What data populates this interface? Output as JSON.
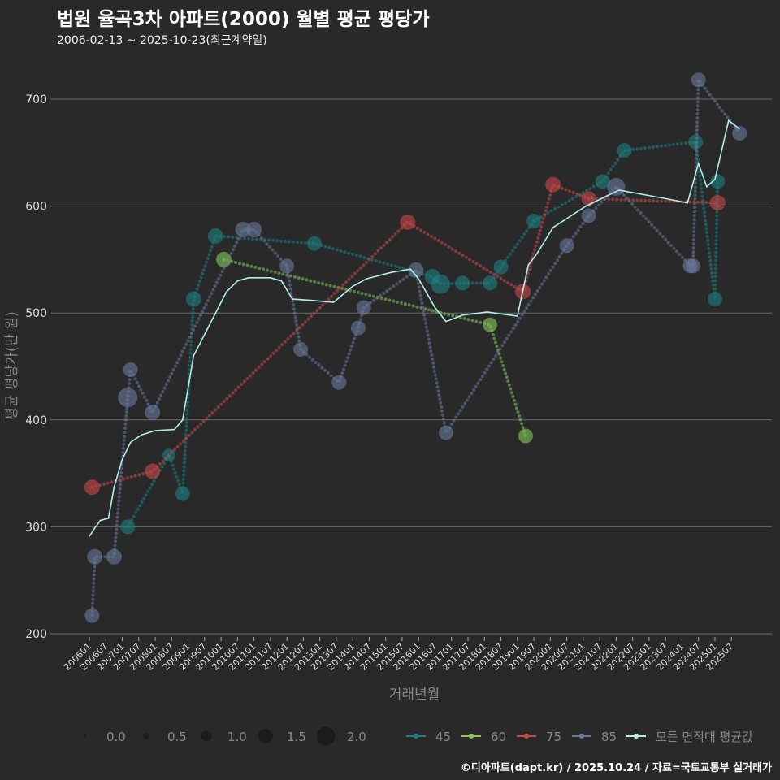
{
  "header": {
    "title": "법원 율곡3차 아파트(2000) 월별 평균 평당가",
    "subtitle": "2006-02-13 ~ 2025-10-23(최근계약일)"
  },
  "credit": "©디아파트(dapt.kr) / 2025.10.24 / 자료=국토교통부 실거래가",
  "chart_data": {
    "type": "line",
    "title": "법원 율곡3차 아파트(2000) 월별 평균 평당가",
    "xlabel": "거래년월",
    "ylabel": "평균 평당가(만 원)",
    "ylim": [
      200,
      730
    ],
    "yticks": [
      200,
      300,
      400,
      500,
      600,
      700
    ],
    "x_unit": "months since 2006-01",
    "xticks": [
      "200601",
      "200607",
      "200701",
      "200707",
      "200801",
      "200807",
      "200901",
      "200907",
      "201001",
      "201007",
      "201101",
      "201107",
      "201201",
      "201207",
      "201301",
      "201307",
      "201401",
      "201407",
      "201501",
      "201507",
      "201601",
      "201607",
      "201701",
      "201707",
      "201801",
      "201807",
      "201901",
      "201907",
      "202001",
      "202007",
      "202101",
      "202107",
      "202201",
      "202207",
      "202301",
      "202307",
      "202401",
      "202407",
      "202501",
      "202507"
    ],
    "grid": true,
    "size_legend": {
      "title": "",
      "values": [
        "0.0",
        "0.5",
        "1.0",
        "1.5",
        "2.0"
      ]
    },
    "legend_position": "bottom",
    "series": [
      {
        "name": "45",
        "color": "#1c8080",
        "points": [
          [
            14,
            300,
            0.8
          ],
          [
            29,
            367,
            0.6
          ],
          [
            34,
            331,
            0.8
          ],
          [
            38,
            513,
            0.9
          ],
          [
            46,
            572,
            0.9
          ],
          [
            82,
            565,
            0.8
          ],
          [
            125,
            534,
            0.9
          ],
          [
            128,
            527,
            1.4
          ],
          [
            136,
            528,
            0.8
          ],
          [
            146,
            528,
            0.8
          ],
          [
            150,
            543,
            0.8
          ],
          [
            162,
            586,
            0.8
          ],
          [
            187,
            623,
            0.8
          ],
          [
            195,
            652,
            0.8
          ],
          [
            221,
            660,
            0.8
          ],
          [
            229,
            623,
            0.8
          ],
          [
            228,
            513,
            0.8
          ]
        ]
      },
      {
        "name": "60",
        "color": "#86c85a",
        "points": [
          [
            49,
            550,
            0.9
          ],
          [
            146,
            489,
            0.8
          ],
          [
            159,
            385,
            0.8
          ]
        ]
      },
      {
        "name": "75",
        "color": "#cc4848",
        "points": [
          [
            1,
            337,
            0.9
          ],
          [
            23,
            352,
            0.9
          ],
          [
            116,
            585,
            0.9
          ],
          [
            158,
            520,
            0.9
          ],
          [
            169,
            620,
            0.9
          ],
          [
            182,
            607,
            0.8
          ],
          [
            229,
            603,
            0.9
          ]
        ]
      },
      {
        "name": "85",
        "color": "#6a7a9c",
        "points": [
          [
            1,
            217,
            0.8
          ],
          [
            2,
            272,
            0.9
          ],
          [
            9,
            272,
            0.9
          ],
          [
            15,
            447,
            0.8
          ],
          [
            14,
            421,
            1.4
          ],
          [
            23,
            407,
            0.9
          ],
          [
            56,
            578,
            0.9
          ],
          [
            60,
            578,
            0.9
          ],
          [
            72,
            544,
            0.8
          ],
          [
            77,
            466,
            0.8
          ],
          [
            91,
            435,
            0.8
          ],
          [
            98,
            486,
            0.8
          ],
          [
            100,
            505,
            0.8
          ],
          [
            119,
            540,
            0.9
          ],
          [
            130,
            388,
            0.8
          ],
          [
            174,
            563,
            0.8
          ],
          [
            182,
            591,
            0.8
          ],
          [
            192,
            618,
            1.2
          ],
          [
            219,
            544,
            0.8
          ],
          [
            220,
            544,
            0.8
          ],
          [
            222,
            718,
            0.8
          ],
          [
            237,
            668,
            0.8
          ]
        ]
      },
      {
        "name": "모든 면적대 평균값",
        "color": "#b2f0ea",
        "points": [
          [
            0,
            291
          ],
          [
            2,
            299
          ],
          [
            4,
            306
          ],
          [
            7,
            308
          ],
          [
            9,
            337
          ],
          [
            12,
            363
          ],
          [
            15,
            379
          ],
          [
            19,
            386
          ],
          [
            24,
            390
          ],
          [
            31,
            391
          ],
          [
            34,
            400
          ],
          [
            36,
            430
          ],
          [
            38,
            460
          ],
          [
            41,
            475
          ],
          [
            44,
            490
          ],
          [
            50,
            520
          ],
          [
            54,
            530
          ],
          [
            58,
            533
          ],
          [
            66,
            533
          ],
          [
            70,
            530
          ],
          [
            74,
            513
          ],
          [
            80,
            512
          ],
          [
            89,
            510
          ],
          [
            96,
            525
          ],
          [
            101,
            532
          ],
          [
            110,
            538
          ],
          [
            117,
            541
          ],
          [
            120,
            532
          ],
          [
            126,
            505
          ],
          [
            130,
            492
          ],
          [
            136,
            498
          ],
          [
            145,
            501
          ],
          [
            156,
            497
          ],
          [
            160,
            545
          ],
          [
            163,
            555
          ],
          [
            169,
            580
          ],
          [
            181,
            600
          ],
          [
            193,
            615
          ],
          [
            210,
            607
          ],
          [
            218,
            603
          ],
          [
            222,
            640
          ],
          [
            225,
            618
          ],
          [
            228,
            625
          ],
          [
            233,
            680
          ],
          [
            237,
            672
          ]
        ]
      }
    ]
  }
}
